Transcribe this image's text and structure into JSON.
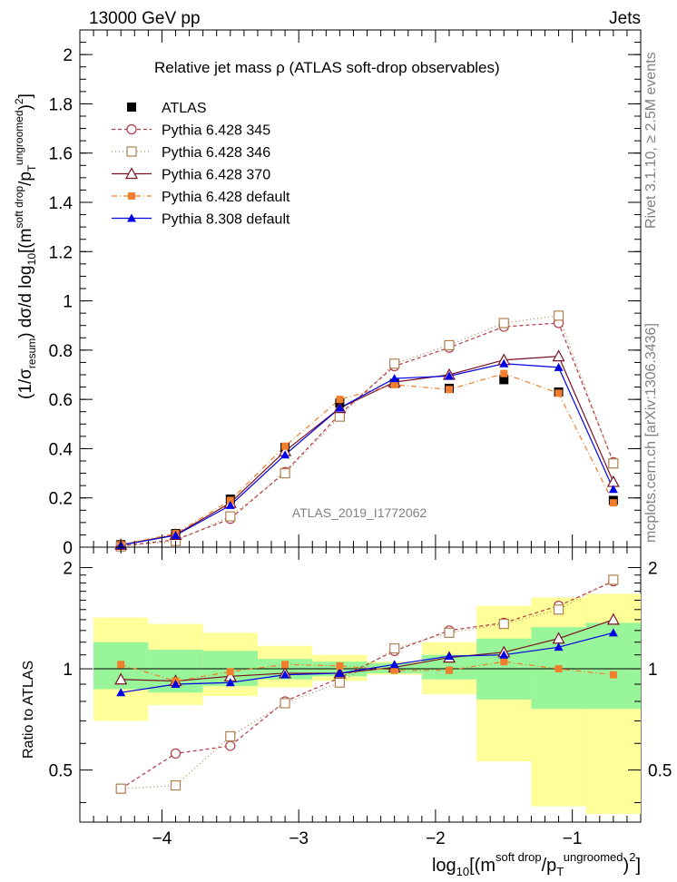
{
  "header": {
    "left": "13000 GeV pp",
    "right": "Jets",
    "side_top": "Rivet 3.1.10, ≥ 2.5M events",
    "side_bottom": "mcplots.cern.ch [arXiv:1306.3436]",
    "watermark": "ATLAS_2019_I1772062"
  },
  "chart_data": {
    "type": "line",
    "title": "Relative jet mass  ρ (ATLAS soft-drop observables)",
    "xlabel": {
      "pre": "log",
      "sub": "10",
      "open": "[(m",
      "sup1": "soft drop",
      "mid": "/p",
      "sub2": "T",
      "sup2": "ungroomed",
      "close": ")",
      "sup3": "2",
      "end": "]"
    },
    "ylabel": {
      "p1": "(1/σ",
      "s1": "resum",
      "p2": ") dσ/d log",
      "s2": "10",
      "p3": "[(m",
      "u1": "soft drop",
      "p4": "/p",
      "s3": "T",
      "u2": "ungroomed",
      "p5": ")",
      "u3": "2",
      "p6": "]"
    },
    "ratio_ylabel": "Ratio to ATLAS",
    "xlim": [
      -4.6,
      -0.5
    ],
    "ylim": [
      0,
      2.1
    ],
    "ratio_ylim": [
      0.35,
      2.3
    ],
    "x": [
      -4.3,
      -3.9,
      -3.5,
      -3.1,
      -2.7,
      -2.3,
      -1.9,
      -1.5,
      -1.1,
      -0.7
    ],
    "bin_edges": [
      -4.5,
      -4.1,
      -3.7,
      -3.3,
      -2.9,
      -2.5,
      -2.1,
      -1.7,
      -1.3,
      -0.9,
      -0.5
    ],
    "main_ticks": [
      "0",
      "0.2",
      "0.4",
      "0.6",
      "0.8",
      "1",
      "1.2",
      "1.4",
      "1.6",
      "1.8",
      "2"
    ],
    "x_ticks": [
      "−4",
      "−3",
      "−2",
      "−1"
    ],
    "ratio_ticks": [
      "0.5",
      "1",
      "2"
    ],
    "legend_position": "top-left",
    "data": {
      "name": "ATLAS",
      "color": "#000000",
      "values": [
        0.01,
        0.055,
        0.195,
        0.405,
        0.585,
        0.665,
        0.645,
        0.68,
        0.63,
        0.19
      ]
    },
    "band_green": [
      [
        0.87,
        1.2
      ],
      [
        0.85,
        1.14
      ],
      [
        0.89,
        1.13
      ],
      [
        0.93,
        1.07
      ],
      [
        0.95,
        1.05
      ],
      [
        0.97,
        1.04
      ],
      [
        0.93,
        1.1
      ],
      [
        0.81,
        1.23
      ],
      [
        0.76,
        1.33
      ],
      [
        0.76,
        1.37
      ]
    ],
    "band_yellow": [
      [
        0.7,
        1.42
      ],
      [
        0.78,
        1.36
      ],
      [
        0.83,
        1.28
      ],
      [
        0.88,
        1.17
      ],
      [
        0.92,
        1.1
      ],
      [
        0.96,
        1.05
      ],
      [
        0.84,
        1.2
      ],
      [
        0.53,
        1.54
      ],
      [
        0.39,
        1.63
      ],
      [
        0.37,
        1.67
      ]
    ],
    "series": [
      {
        "name": "Pythia 6.428 345",
        "color": "#b03a48",
        "marker": "open-circle",
        "dash": "4,3",
        "values": [
          0.005,
          0.03,
          0.115,
          0.305,
          0.54,
          0.735,
          0.81,
          0.895,
          0.91,
          0.345
        ],
        "ratio": [
          0.44,
          0.56,
          0.59,
          0.8,
          0.94,
          1.13,
          1.3,
          1.37,
          1.54,
          1.82
        ]
      },
      {
        "name": "Pythia 6.428 346",
        "color": "#b08050",
        "marker": "open-square",
        "dash": "1,3",
        "values": [
          0.003,
          0.025,
          0.125,
          0.3,
          0.53,
          0.745,
          0.82,
          0.91,
          0.94,
          0.34
        ],
        "ratio": [
          0.44,
          0.45,
          0.63,
          0.79,
          0.91,
          1.15,
          1.28,
          1.36,
          1.5,
          1.84
        ]
      },
      {
        "name": "Pythia 6.428 370",
        "color": "#7a1022",
        "marker": "open-triangle",
        "dash": "",
        "values": [
          0.01,
          0.05,
          0.18,
          0.39,
          0.565,
          0.67,
          0.7,
          0.76,
          0.775,
          0.265
        ],
        "ratio": [
          0.93,
          0.92,
          0.95,
          0.97,
          0.97,
          1.01,
          1.08,
          1.12,
          1.23,
          1.4
        ]
      },
      {
        "name": "Pythia 6.428 default",
        "color": "#f07e2d",
        "marker": "filled-square",
        "dash": "6,3,1,3",
        "values": [
          0.01,
          0.055,
          0.19,
          0.41,
          0.6,
          0.66,
          0.64,
          0.705,
          0.625,
          0.18
        ],
        "ratio": [
          1.03,
          0.92,
          0.98,
          1.03,
          1.02,
          0.99,
          0.99,
          1.05,
          1.0,
          0.96
        ]
      },
      {
        "name": "Pythia 8.308 default",
        "color": "#0000e6",
        "marker": "filled-triangle",
        "dash": "",
        "values": [
          0.008,
          0.048,
          0.17,
          0.375,
          0.565,
          0.685,
          0.695,
          0.745,
          0.73,
          0.235
        ],
        "ratio": [
          0.85,
          0.9,
          0.91,
          0.96,
          0.97,
          1.03,
          1.09,
          1.1,
          1.16,
          1.28
        ]
      }
    ]
  }
}
